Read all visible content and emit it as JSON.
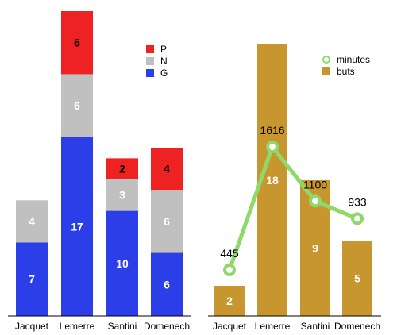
{
  "chart_data": [
    {
      "type": "bar",
      "stacked": true,
      "categories": [
        "Jacquet",
        "Lemerre",
        "Santini",
        "Domenech"
      ],
      "series": [
        {
          "name": "G",
          "color": "#2b3ee8",
          "values": [
            7,
            17,
            10,
            6
          ]
        },
        {
          "name": "N",
          "color": "#c0c0c0",
          "values": [
            4,
            6,
            3,
            6
          ]
        },
        {
          "name": "P",
          "color": "#ee2222",
          "values": [
            null,
            6,
            2,
            4
          ]
        }
      ],
      "legend": {
        "placement": "top-right",
        "order": [
          "P",
          "N",
          "G"
        ]
      },
      "ylim": [
        0,
        29
      ],
      "grid": false
    },
    {
      "type": "bar+line",
      "categories": [
        "Jacquet",
        "Lemerre",
        "Santini",
        "Domenech"
      ],
      "series": [
        {
          "name": "buts",
          "type": "bar",
          "color": "#c8962f",
          "values": [
            2,
            18,
            9,
            5
          ]
        },
        {
          "name": "minutes",
          "type": "line",
          "color": "#8fd86a",
          "values": [
            445,
            1616,
            1100,
            933
          ]
        }
      ],
      "legend": {
        "placement": "top-right",
        "order": [
          "minutes",
          "buts"
        ]
      },
      "ylim_bars": [
        0,
        20
      ],
      "ylim_line": [
        -200,
        3000
      ],
      "grid": false
    }
  ]
}
